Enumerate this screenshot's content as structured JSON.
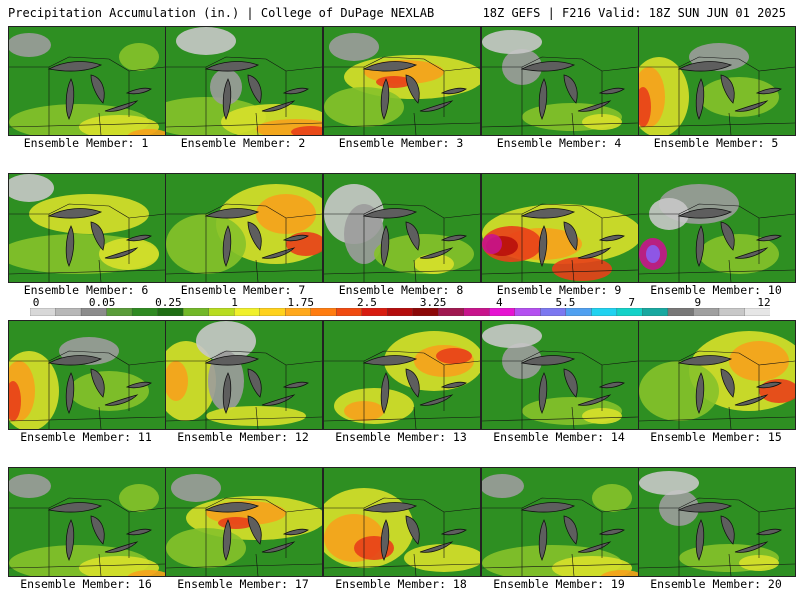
{
  "header": {
    "left": "Precipitation Accumulation (in.) | College of DuPage NEXLAB",
    "right": "18Z GEFS | F216 Valid: 18Z SUN JUN 01 2025"
  },
  "colors": {
    "land_base": "#2e8f22",
    "water": "#5e5e5e",
    "outline": "#111111"
  },
  "colorbar": {
    "tick_labels": [
      "0",
      "0.05",
      "0.25",
      "1",
      "1.75",
      "2.5",
      "3.25",
      "4",
      "5.5",
      "7",
      "9",
      "12"
    ],
    "colors": [
      "#d8d8d8",
      "#b8b8b8",
      "#8c8c8c",
      "#5a9c3a",
      "#2f8a22",
      "#1f6e14",
      "#72b828",
      "#b8dc20",
      "#f0f02a",
      "#ffd21c",
      "#ffa81c",
      "#ff7c10",
      "#f04a10",
      "#d81c10",
      "#b40c0c",
      "#8c0808",
      "#a01850",
      "#c8148c",
      "#e614d2",
      "#b450f0",
      "#7c78f0",
      "#50a0f0",
      "#20d2f0",
      "#14d2c8",
      "#18a8a0",
      "#787878",
      "#a0a0a0",
      "#c8c8c8",
      "#e6e6e6"
    ]
  },
  "panels": [
    {
      "label": "Ensemble Member: 1",
      "intensity": "moderate-south"
    },
    {
      "label": "Ensemble Member: 2",
      "intensity": "heavy-southeast"
    },
    {
      "label": "Ensemble Member: 3",
      "intensity": "heavy-center"
    },
    {
      "label": "Ensemble Member: 4",
      "intensity": "light"
    },
    {
      "label": "Ensemble Member: 5",
      "intensity": "heavy-west"
    },
    {
      "label": "Ensemble Member: 6",
      "intensity": "moderate-wide"
    },
    {
      "label": "Ensemble Member: 7",
      "intensity": "heavy-east"
    },
    {
      "label": "Ensemble Member: 8",
      "intensity": "light-west"
    },
    {
      "label": "Ensemble Member: 9",
      "intensity": "very-heavy-south"
    },
    {
      "label": "Ensemble Member: 10",
      "intensity": "heavy-west-spot"
    },
    {
      "label": "Ensemble Member: 11",
      "intensity": "heavy-west"
    },
    {
      "label": "Ensemble Member: 12",
      "intensity": "moderate-west"
    },
    {
      "label": "Ensemble Member: 13",
      "intensity": "heavy-northeast"
    },
    {
      "label": "Ensemble Member: 14",
      "intensity": "light"
    },
    {
      "label": "Ensemble Member: 15",
      "intensity": "heavy-east"
    },
    {
      "label": "Ensemble Member: 16",
      "intensity": "moderate-south"
    },
    {
      "label": "Ensemble Member: 17",
      "intensity": "heavy-center"
    },
    {
      "label": "Ensemble Member: 18",
      "intensity": "heavy-south"
    },
    {
      "label": "Ensemble Member: 19",
      "intensity": "moderate-south"
    },
    {
      "label": "Ensemble Member: 20",
      "intensity": "light"
    }
  ]
}
